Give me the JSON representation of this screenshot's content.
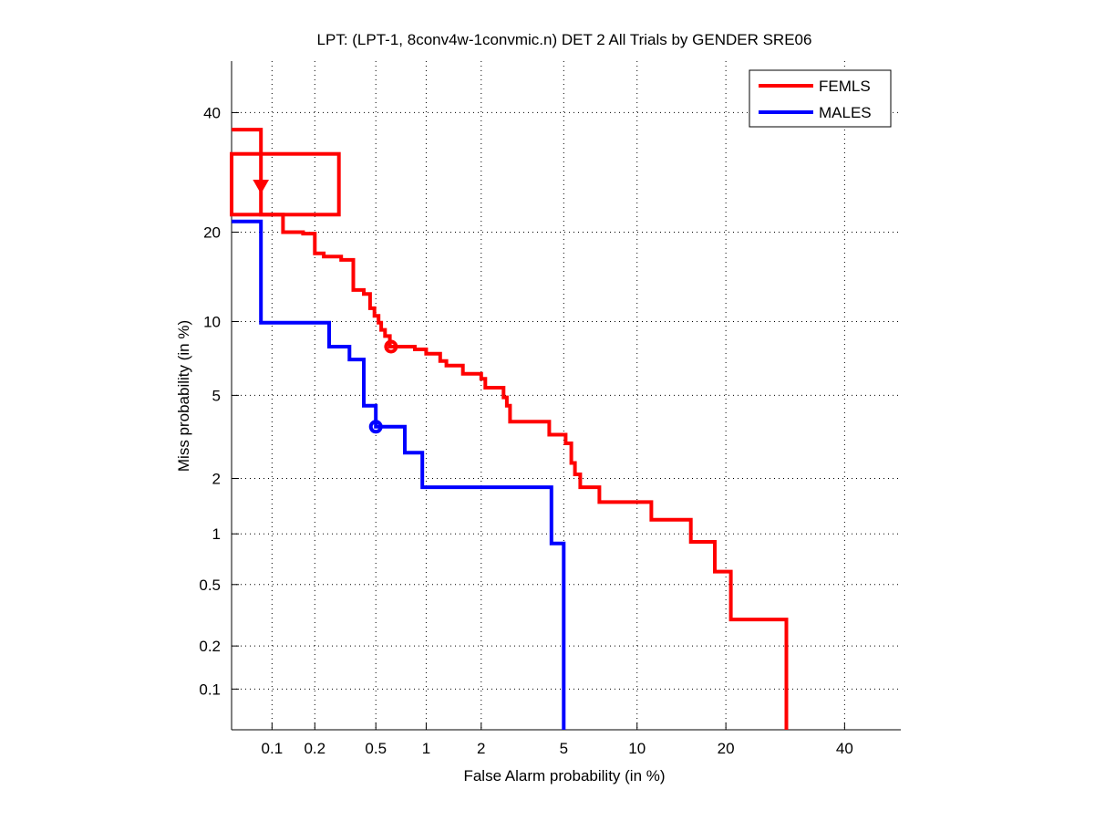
{
  "chart_data": {
    "type": "line",
    "title": "LPT: (LPT-1, 8conv4w-1convmic.n) DET 2 All Trials by GENDER SRE06",
    "xlabel": "False Alarm probability (in %)",
    "ylabel": "Miss probability (in %)",
    "scale": "probit",
    "xlim": [
      0.05,
      51
    ],
    "ylim": [
      0.05,
      50
    ],
    "xticks": [
      0.1,
      0.2,
      0.5,
      1,
      2,
      5,
      10,
      20,
      40
    ],
    "xtick_labels": [
      "0.1",
      "0.2",
      "0.5",
      "1",
      "2",
      "5",
      "10",
      "20",
      "40"
    ],
    "yticks": [
      0.1,
      0.2,
      0.5,
      1,
      2,
      5,
      10,
      20,
      40
    ],
    "ytick_labels": [
      "0.1",
      "0.2",
      "0.5",
      "1",
      "2",
      "5",
      "10",
      "20",
      "40"
    ],
    "grid": true,
    "legend": {
      "position": "top-right",
      "entries": [
        "FEMLS",
        "MALES"
      ]
    },
    "series": [
      {
        "name": "FEMLS",
        "color": "#ff0000",
        "points": [
          [
            0.05,
            36.8
          ],
          [
            0.083,
            36.8
          ],
          [
            0.083,
            22.5
          ],
          [
            0.12,
            22.5
          ],
          [
            0.12,
            20.0
          ],
          [
            0.166,
            20.0
          ],
          [
            0.166,
            19.8
          ],
          [
            0.2,
            19.8
          ],
          [
            0.2,
            17.2
          ],
          [
            0.23,
            17.2
          ],
          [
            0.23,
            16.8
          ],
          [
            0.3,
            16.8
          ],
          [
            0.3,
            16.4
          ],
          [
            0.36,
            16.4
          ],
          [
            0.36,
            13.0
          ],
          [
            0.42,
            13.0
          ],
          [
            0.42,
            12.6
          ],
          [
            0.46,
            12.6
          ],
          [
            0.46,
            11.2
          ],
          [
            0.49,
            11.2
          ],
          [
            0.49,
            10.5
          ],
          [
            0.52,
            10.5
          ],
          [
            0.52,
            9.9
          ],
          [
            0.54,
            9.9
          ],
          [
            0.54,
            9.3
          ],
          [
            0.57,
            9.3
          ],
          [
            0.57,
            8.8
          ],
          [
            0.61,
            8.8
          ],
          [
            0.61,
            8.0
          ],
          [
            0.86,
            8.0
          ],
          [
            0.86,
            7.8
          ],
          [
            1.0,
            7.8
          ],
          [
            1.0,
            7.5
          ],
          [
            1.2,
            7.5
          ],
          [
            1.2,
            7.0
          ],
          [
            1.3,
            7.0
          ],
          [
            1.3,
            6.7
          ],
          [
            1.6,
            6.7
          ],
          [
            1.6,
            6.2
          ],
          [
            2.0,
            6.2
          ],
          [
            2.0,
            5.9
          ],
          [
            2.1,
            5.9
          ],
          [
            2.1,
            5.4
          ],
          [
            2.6,
            5.4
          ],
          [
            2.6,
            4.9
          ],
          [
            2.7,
            4.9
          ],
          [
            2.7,
            4.5
          ],
          [
            2.8,
            4.5
          ],
          [
            2.8,
            3.8
          ],
          [
            4.3,
            3.8
          ],
          [
            4.3,
            3.3
          ],
          [
            5.1,
            3.3
          ],
          [
            5.1,
            3.0
          ],
          [
            5.4,
            3.0
          ],
          [
            5.4,
            2.4
          ],
          [
            5.6,
            2.4
          ],
          [
            5.6,
            2.1
          ],
          [
            5.9,
            2.1
          ],
          [
            5.9,
            1.8
          ],
          [
            7.1,
            1.8
          ],
          [
            7.1,
            1.5
          ],
          [
            11.3,
            1.5
          ],
          [
            11.3,
            1.2
          ],
          [
            15.5,
            1.2
          ],
          [
            15.5,
            0.9
          ],
          [
            18.5,
            0.9
          ],
          [
            18.5,
            0.6
          ],
          [
            20.7,
            0.6
          ],
          [
            20.7,
            0.3
          ],
          [
            29.4,
            0.3
          ],
          [
            29.4,
            0.05
          ]
        ],
        "confidence_box": {
          "fa": [
            0.05,
            0.29
          ],
          "miss": [
            22.5,
            32.4
          ]
        },
        "actual_marker": {
          "shape": "triangle-down",
          "fa": 0.083,
          "miss": 27.0
        },
        "min_dcf_marker": {
          "shape": "circle",
          "fa": 0.62,
          "miss": 8.0
        }
      },
      {
        "name": "MALES",
        "color": "#0000ff",
        "points": [
          [
            0.05,
            21.5
          ],
          [
            0.083,
            21.5
          ],
          [
            0.083,
            9.9
          ],
          [
            0.25,
            9.9
          ],
          [
            0.25,
            8.0
          ],
          [
            0.34,
            8.0
          ],
          [
            0.34,
            7.1
          ],
          [
            0.42,
            7.1
          ],
          [
            0.42,
            4.5
          ],
          [
            0.5,
            4.5
          ],
          [
            0.5,
            3.6
          ],
          [
            0.75,
            3.6
          ],
          [
            0.75,
            2.7
          ],
          [
            0.95,
            2.7
          ],
          [
            0.95,
            1.8
          ],
          [
            4.4,
            1.8
          ],
          [
            4.4,
            0.88
          ],
          [
            5.0,
            0.88
          ],
          [
            5.0,
            0.05
          ]
        ],
        "min_dcf_marker": {
          "shape": "circle",
          "fa": 0.5,
          "miss": 3.6
        }
      }
    ]
  }
}
